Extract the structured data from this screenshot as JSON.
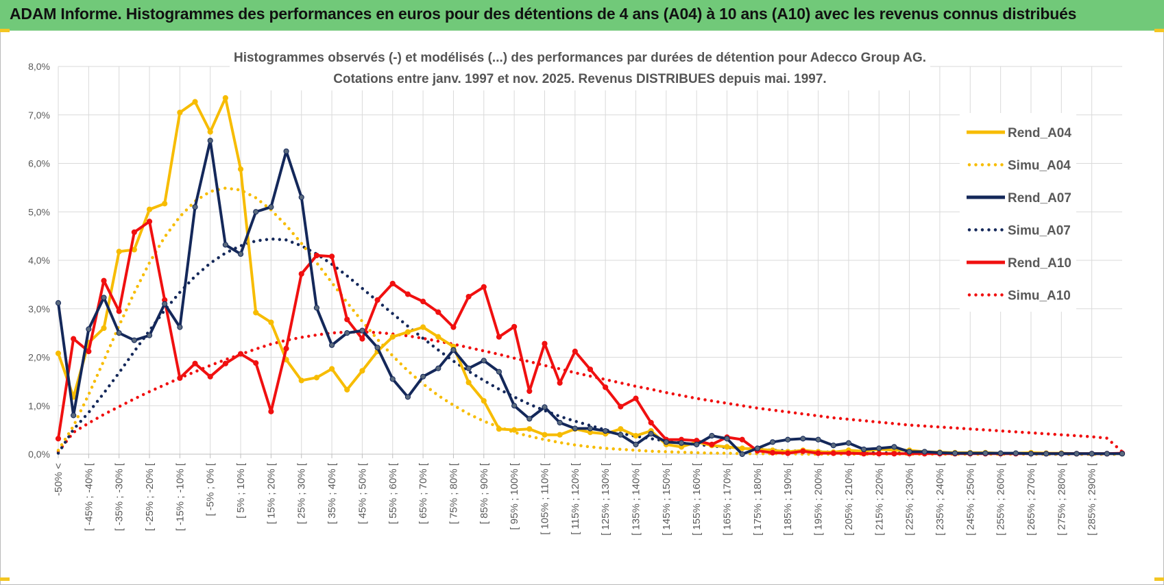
{
  "header": {
    "title": "ADAM Informe. Histogrammes des performances en euros pour des détentions de 4 ans (A04) à 10 ans (A10) avec les revenus connus distribués"
  },
  "colors": {
    "banner": "#71c979",
    "A04": "#f7bc00",
    "A07": "#14285a",
    "A07_marker": "#5a6a7e",
    "A10": "#f01010",
    "grid": "#d9d9d9"
  },
  "chart_data": {
    "type": "line",
    "title_line1": "Histogrammes observés (-) et modélisés (...) des performances par durées de détention pour Adecco Group AG.",
    "title_line2": "Cotations entre janv. 1997 et nov. 2025. Revenus DISTRIBUES depuis mai. 1997.",
    "xlabel": "",
    "ylabel": "",
    "ylim": [
      0,
      8
    ],
    "y_ticks": [
      "0,0%",
      "1,0%",
      "2,0%",
      "3,0%",
      "4,0%",
      "5,0%",
      "6,0%",
      "7,0%",
      "8,0%"
    ],
    "legend_position": "right",
    "categories": [
      "-50% <",
      "[ -50% ; -45% [",
      "[ -45% ; -40% [",
      "[ -40% ; -35% [",
      "[ -35% ; -30% [",
      "[ -30% ; -25% [",
      "[ -25% ; -20% [",
      "[ -20% ; -15% [",
      "[ -15% ; -10% [",
      "[ -10% ; -5% [",
      "[ -5% ; 0% [",
      "[ 0% ; 5% [",
      "[ 5% ; 10% [",
      "[ 10% ; 15% [",
      "[ 15% ; 20% [",
      "[ 20% ; 25% [",
      "[ 25% ; 30% [",
      "[ 30% ; 35% [",
      "[ 35% ; 40% [",
      "[ 40% ; 45% [",
      "[ 45% ; 50% [",
      "[ 50% ; 55% [",
      "[ 55% ; 60% [",
      "[ 60% ; 65% [",
      "[ 65% ; 70% [",
      "[ 70% ; 75% [",
      "[ 75% ; 80% [",
      "[ 80% ; 85% [",
      "[ 85% ; 90% [",
      "[ 90% ; 95% [",
      "[ 95% ; 100% [",
      "[ 100% ; 105% [",
      "[ 105% ; 110% [",
      "[ 110% ; 115% [",
      "[ 115% ; 120% [",
      "[ 120% ; 125% [",
      "[ 125% ; 130% [",
      "[ 130% ; 135% [",
      "[ 135% ; 140% [",
      "[ 140% ; 145% [",
      "[ 145% ; 150% [",
      "[ 150% ; 155% [",
      "[ 155% ; 160% [",
      "[ 160% ; 165% [",
      "[ 165% ; 170% [",
      "[ 170% ; 175% [",
      "[ 175% ; 180% [",
      "[ 180% ; 185% [",
      "[ 185% ; 190% [",
      "[ 190% ; 195% [",
      "[ 195% ; 200% [",
      "[ 200% ; 205% [",
      "[ 205% ; 210% [",
      "[ 210% ; 215% [",
      "[ 215% ; 220% [",
      "[ 220% ; 225% [",
      "[ 225% ; 230% [",
      "[ 230% ; 235% [",
      "[ 235% ; 240% [",
      "[ 240% ; 245% [",
      "[ 245% ; 250% [",
      "[ 250% ; 255% [",
      "[ 255% ; 260% [",
      "[ 260% ; 265% [",
      "[ 265% ; 270% [",
      "[ 270% ; 275% [",
      "[ 275% ; 280% [",
      "[ 280% ; 285% [",
      "[ 285% ; 290% [",
      "[ 290% ; 295% [",
      "> 295%"
    ],
    "visible_tick_labels": [
      "-50% <",
      "[ -45% ; -40% [",
      "[ -35% ; -30% [",
      "[ -25% ; -20% [",
      "[ -15% ; -10% [",
      "[ -5% ; 0% [",
      "[ 5% ; 10% [",
      "[ 15% ; 20% [",
      "[ 25% ; 30% [",
      "[ 35% ; 40% [",
      "[ 45% ; 50% [",
      "[ 55% ; 60% [",
      "[ 65% ; 70% [",
      "[ 75% ; 80% [",
      "[ 85% ; 90% [",
      "[ 95% ; 100% [",
      "[ 105% ; 110% [",
      "[ 115% ; 120% [",
      "[ 125% ; 130% [",
      "[ 135% ; 140% [",
      "[ 145% ; 150% [",
      "[ 155% ; 160% [",
      "[ 165% ; 170% [",
      "[ 175% ; 180% [",
      "[ 185% ; 190% [",
      "[ 195% ; 200% [",
      "[ 205% ; 210% [",
      "[ 215% ; 220% [",
      "[ 225% ; 230% [",
      "[ 235% ; 240% [",
      "[ 245% ; 250% [",
      "[ 255% ; 260% [",
      "[ 265% ; 270% [",
      "[ 275% ; 280% [",
      "[ 285% ; 290% ["
    ],
    "series": [
      {
        "name": "Rend_A04",
        "style": "solid",
        "color": "#f7bc00",
        "values": [
          2.08,
          1.18,
          2.3,
          2.6,
          4.18,
          4.22,
          5.05,
          5.17,
          7.05,
          7.27,
          6.65,
          7.35,
          5.88,
          2.92,
          2.72,
          1.95,
          1.52,
          1.58,
          1.76,
          1.33,
          1.72,
          2.12,
          2.42,
          2.52,
          2.62,
          2.42,
          2.22,
          1.48,
          1.1,
          0.52,
          0.5,
          0.52,
          0.4,
          0.4,
          0.52,
          0.45,
          0.42,
          0.52,
          0.38,
          0.48,
          0.2,
          0.15,
          0.25,
          0.18,
          0.15,
          0.12,
          0.1,
          0.08,
          0.05,
          0.08,
          0.05,
          0.04,
          0.08,
          0.06,
          0.1,
          0.08,
          0.08,
          0.05,
          0.04,
          0.03,
          0.03,
          0.03,
          0.02,
          0.02,
          0.03,
          0.02,
          0.02,
          0.01,
          0.01,
          0.01,
          0.01
        ]
      },
      {
        "name": "Simu_A04",
        "style": "dotted",
        "color": "#f7bc00",
        "values": [
          0.08,
          0.58,
          1.23,
          1.93,
          2.65,
          3.33,
          3.95,
          4.48,
          4.9,
          5.22,
          5.42,
          5.49,
          5.45,
          5.29,
          5.04,
          4.72,
          4.35,
          3.95,
          3.54,
          3.13,
          2.74,
          2.37,
          2.03,
          1.72,
          1.45,
          1.21,
          1.01,
          0.83,
          0.68,
          0.56,
          0.45,
          0.37,
          0.3,
          0.24,
          0.19,
          0.15,
          0.12,
          0.1,
          0.08,
          0.06,
          0.05,
          0.04,
          0.03,
          0.02,
          0.02,
          0.01,
          0.01,
          0.01,
          0.01,
          0,
          0,
          0,
          0,
          0,
          0,
          0,
          0,
          0,
          0,
          0,
          0,
          0,
          0,
          0,
          0,
          0,
          0,
          0,
          0,
          0,
          0
        ]
      },
      {
        "name": "Rend_A07",
        "style": "solid",
        "color": "#14285a",
        "values": [
          3.12,
          0.8,
          2.58,
          3.23,
          2.5,
          2.35,
          2.45,
          3.1,
          2.62,
          5.1,
          6.47,
          4.32,
          4.13,
          5.0,
          5.1,
          6.25,
          5.3,
          3.02,
          2.25,
          2.5,
          2.55,
          2.2,
          1.55,
          1.18,
          1.6,
          1.77,
          2.15,
          1.77,
          1.93,
          1.7,
          1.0,
          0.73,
          0.97,
          0.65,
          0.53,
          0.53,
          0.48,
          0.4,
          0.2,
          0.42,
          0.25,
          0.23,
          0.2,
          0.38,
          0.32,
          0.0,
          0.12,
          0.25,
          0.3,
          0.32,
          0.3,
          0.18,
          0.23,
          0.1,
          0.12,
          0.15,
          0.05,
          0.05,
          0.03,
          0.02,
          0.02,
          0.02,
          0.02,
          0.02,
          0.01,
          0.01,
          0.01,
          0.01,
          0.01,
          0.01,
          0.01
        ]
      },
      {
        "name": "Simu_A07",
        "style": "dotted",
        "color": "#14285a",
        "values": [
          0.02,
          0.51,
          0.86,
          1.26,
          1.68,
          2.12,
          2.55,
          2.97,
          3.34,
          3.67,
          3.94,
          4.15,
          4.3,
          4.4,
          4.44,
          4.42,
          4.3,
          4.13,
          3.92,
          3.68,
          3.42,
          3.16,
          2.9,
          2.64,
          2.39,
          2.15,
          1.92,
          1.71,
          1.52,
          1.34,
          1.18,
          1.03,
          0.9,
          0.78,
          0.68,
          0.59,
          0.5,
          0.43,
          0.37,
          0.32,
          0.27,
          0.23,
          0.2,
          0.17,
          0.14,
          0.12,
          0.1,
          0.08,
          0.07,
          0.06,
          0.05,
          0.04,
          0.04,
          0.03,
          0.03,
          0.02,
          0.02,
          0.02,
          0.01,
          0.01,
          0.01,
          0.01,
          0.01,
          0.01,
          0.01,
          0,
          0,
          0,
          0,
          0,
          0
        ]
      },
      {
        "name": "Rend_A10",
        "style": "solid",
        "color": "#f01010",
        "values": [
          0.32,
          2.38,
          2.12,
          3.58,
          2.95,
          4.58,
          4.8,
          3.18,
          1.57,
          1.87,
          1.6,
          1.87,
          2.07,
          1.88,
          0.88,
          2.18,
          3.72,
          4.1,
          4.08,
          2.78,
          2.38,
          3.18,
          3.52,
          3.3,
          3.15,
          2.93,
          2.62,
          3.25,
          3.45,
          2.42,
          2.63,
          1.3,
          2.28,
          1.47,
          2.12,
          1.75,
          1.38,
          0.98,
          1.15,
          0.65,
          0.3,
          0.3,
          0.28,
          0.2,
          0.35,
          0.3,
          0.07,
          0.03,
          0.02,
          0.06,
          0.02,
          0.02,
          0.02,
          0.01,
          0.01,
          0.01,
          0.01,
          0.01,
          0.01,
          0.01,
          0.01,
          0.01,
          0.01,
          0.01,
          0.01,
          0.01,
          0.01,
          0.01,
          0.01,
          0.01,
          0.02
        ]
      },
      {
        "name": "Simu_A10",
        "style": "dotted",
        "color": "#f01010",
        "values": [
          0.05,
          0.45,
          0.64,
          0.82,
          0.98,
          1.14,
          1.29,
          1.43,
          1.57,
          1.7,
          1.83,
          1.95,
          2.06,
          2.17,
          2.27,
          2.35,
          2.41,
          2.46,
          2.5,
          2.52,
          2.52,
          2.51,
          2.48,
          2.44,
          2.39,
          2.33,
          2.27,
          2.2,
          2.13,
          2.06,
          1.98,
          1.91,
          1.83,
          1.76,
          1.68,
          1.61,
          1.54,
          1.47,
          1.4,
          1.34,
          1.27,
          1.21,
          1.15,
          1.1,
          1.05,
          1.0,
          0.95,
          0.91,
          0.87,
          0.83,
          0.79,
          0.75,
          0.72,
          0.69,
          0.66,
          0.63,
          0.6,
          0.58,
          0.56,
          0.54,
          0.52,
          0.5,
          0.48,
          0.46,
          0.44,
          0.42,
          0.4,
          0.38,
          0.36,
          0.33,
          0.05
        ]
      }
    ]
  }
}
